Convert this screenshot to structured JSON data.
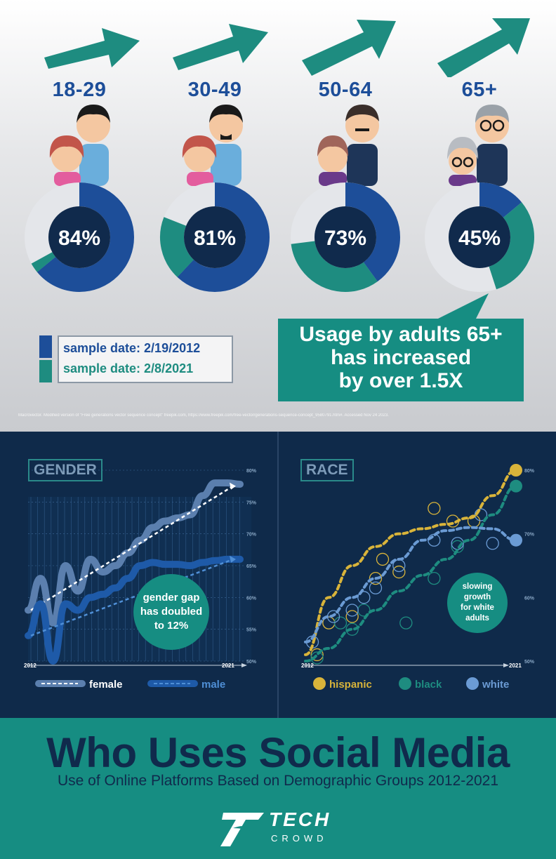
{
  "colors": {
    "navy": "#1d4e99",
    "teal": "#1e8c80",
    "light": "#e4e6ea",
    "center": "#102a4c",
    "hispanic": "#d9b43a",
    "black": "#1e8c80",
    "white": "#6b9bd4"
  },
  "age_groups": [
    {
      "label": "18-29",
      "percent_text": "84%",
      "share_2012": 0.64,
      "share_2021": 0.03
    },
    {
      "label": "30-49",
      "percent_text": "81%",
      "share_2012": 0.62,
      "share_2021": 0.19
    },
    {
      "label": "50-64",
      "percent_text": "73%",
      "share_2012": 0.4,
      "share_2021": 0.33
    },
    {
      "label": "65+",
      "percent_text": "45%",
      "share_2012": 0.14,
      "share_2021": 0.31
    }
  ],
  "legend": {
    "sample_2012": "sample date: 2/19/2012",
    "sample_2021": "sample date: 2/8/2021"
  },
  "callout": {
    "line1": "Usage by adults 65+",
    "line2": "has increased",
    "line3": "by over 1.5X"
  },
  "credit": "Macrovector. Modified version of \"Free generations vector sequence concept\" freepik.com, https://www.freepik.com/free-vector/generations-sequence-concept_9580791.htm#. Accessed Nov 24 2023.",
  "chart_data": [
    {
      "type": "pie",
      "categories": [
        "18-29",
        "30-49",
        "50-64",
        "65+"
      ],
      "values": [
        84,
        81,
        73,
        45
      ],
      "series": [
        {
          "name": "sample date: 2/19/2012",
          "values": [
            64,
            62,
            40,
            14
          ]
        },
        {
          "name": "sample date: 2/8/2021",
          "values": [
            3,
            19,
            33,
            31
          ]
        }
      ]
    },
    {
      "type": "line",
      "title": "GENDER",
      "x_labels": [
        "2012",
        "2021"
      ],
      "y_ticks": [
        "80%",
        "75%",
        "70%",
        "65%",
        "60%",
        "55%",
        "50%"
      ],
      "ylim": [
        50,
        80
      ],
      "note": [
        "gender gap",
        "has doubled",
        "to 12%"
      ],
      "series": [
        {
          "name": "female",
          "values": [
            58,
            63,
            56,
            65,
            61,
            66,
            64,
            65,
            67,
            69,
            71,
            72,
            72.5,
            73,
            76,
            78,
            78,
            77.8
          ],
          "trend": [
            58,
            77.5
          ]
        },
        {
          "name": "male",
          "values": [
            54,
            59,
            50,
            59,
            58,
            60,
            60.5,
            61.5,
            63,
            65,
            65.5,
            65.2,
            65.2,
            65,
            65.5,
            65.8,
            66,
            66
          ],
          "trend": [
            54,
            66
          ]
        }
      ]
    },
    {
      "type": "scatter",
      "title": "RACE",
      "x_labels": [
        "2012",
        "2021"
      ],
      "y_ticks": [
        "80%",
        "70%",
        "60%",
        "50%"
      ],
      "ylim": [
        50,
        80
      ],
      "note": [
        "slowing",
        "growth",
        "for white",
        "adults"
      ],
      "series": [
        {
          "name": "hispanic",
          "curve": [
            51,
            60,
            65,
            68,
            70,
            70.8,
            71.5,
            72.5,
            76,
            80
          ],
          "points": [
            [
              0.5,
              51
            ],
            [
              1,
              56
            ],
            [
              2,
              57
            ],
            [
              3,
              63
            ],
            [
              3.3,
              66
            ],
            [
              4,
              64
            ],
            [
              5.5,
              74
            ],
            [
              6.3,
              72
            ],
            [
              7.2,
              72
            ]
          ]
        },
        {
          "name": "black",
          "curve": [
            50,
            52,
            55,
            58,
            61,
            63.5,
            66,
            69,
            73,
            77.5
          ],
          "points": [
            [
              0.5,
              50.5
            ],
            [
              1.5,
              56
            ],
            [
              2,
              55
            ],
            [
              2.5,
              58
            ],
            [
              4.3,
              56
            ],
            [
              5.5,
              63
            ],
            [
              6.5,
              68
            ]
          ]
        },
        {
          "name": "white",
          "curve": [
            53,
            57,
            60,
            63,
            66,
            69,
            70.5,
            71,
            70.8,
            69
          ],
          "points": [
            [
              0.3,
              53
            ],
            [
              1.2,
              57
            ],
            [
              2,
              58
            ],
            [
              2.5,
              60
            ],
            [
              3,
              61.5
            ],
            [
              4,
              65
            ],
            [
              5.5,
              69
            ],
            [
              6.5,
              68.5
            ],
            [
              7.5,
              73
            ],
            [
              8,
              68.5
            ]
          ]
        }
      ]
    }
  ],
  "title": "Who Uses Social Media",
  "subtitle": "Use of Online Platforms Based on Demographic Groups 2012-2021",
  "logo": {
    "tech": "TECH",
    "crowd": "CROWD"
  }
}
